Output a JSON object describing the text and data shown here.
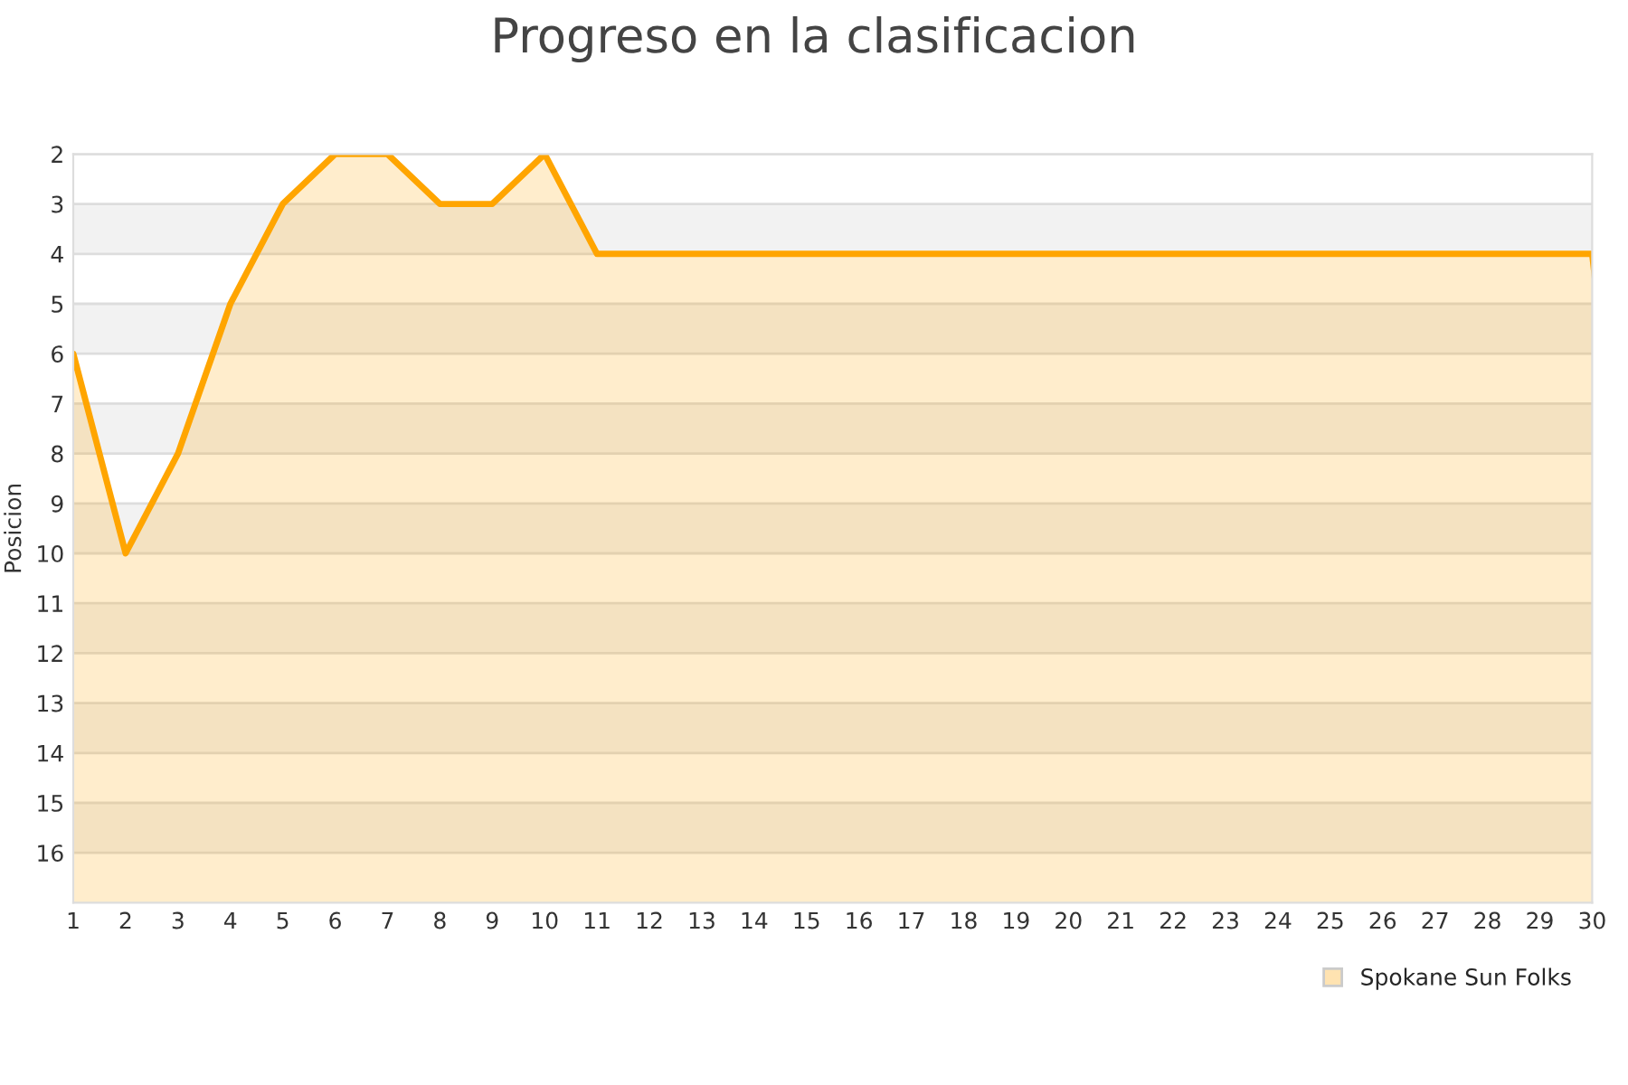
{
  "chart_data": {
    "type": "area",
    "title": "Progreso en la clasificacion",
    "ylabel": "Posicion",
    "x": [
      1,
      2,
      3,
      4,
      5,
      6,
      7,
      8,
      9,
      10,
      11,
      12,
      13,
      14,
      15,
      16,
      17,
      18,
      19,
      20,
      21,
      22,
      23,
      24,
      25,
      26,
      27,
      28,
      29,
      30
    ],
    "series": [
      {
        "name": "Spokane Sun Folks",
        "color": "#ffa500",
        "values": [
          6,
          10,
          8,
          5,
          3,
          2,
          2,
          3,
          3,
          2,
          4,
          4,
          4,
          4,
          4,
          4,
          4,
          4,
          4,
          4,
          4,
          4,
          4,
          4,
          4,
          4,
          4,
          4,
          4,
          4
        ]
      }
    ],
    "xlim": [
      1,
      30
    ],
    "xticks": [
      1,
      2,
      3,
      4,
      5,
      6,
      7,
      8,
      9,
      10,
      11,
      12,
      13,
      14,
      15,
      16,
      17,
      18,
      19,
      20,
      21,
      22,
      23,
      24,
      25,
      26,
      27,
      28,
      29,
      30
    ],
    "ylim": [
      17,
      2
    ],
    "yticks": [
      2,
      3,
      4,
      5,
      6,
      7,
      8,
      9,
      10,
      11,
      12,
      13,
      14,
      15,
      16
    ],
    "bands": [
      {
        "axis": "y",
        "from": 3,
        "to": 4,
        "color": "#f2f2f2"
      },
      {
        "axis": "y",
        "from": 5,
        "to": 6,
        "color": "#f2f2f2"
      },
      {
        "axis": "y",
        "from": 7,
        "to": 8,
        "color": "#f2f2f2"
      },
      {
        "axis": "y",
        "from": 9,
        "to": 10,
        "color": "#f2f2f2"
      },
      {
        "axis": "y",
        "from": 11,
        "to": 12,
        "color": "#f2f2f2"
      },
      {
        "axis": "y",
        "from": 13,
        "to": 14,
        "color": "#f2f2f2"
      },
      {
        "axis": "y",
        "from": 15,
        "to": 16,
        "color": "#f2f2f2"
      }
    ],
    "grid": "y",
    "legend": "bottom right"
  }
}
